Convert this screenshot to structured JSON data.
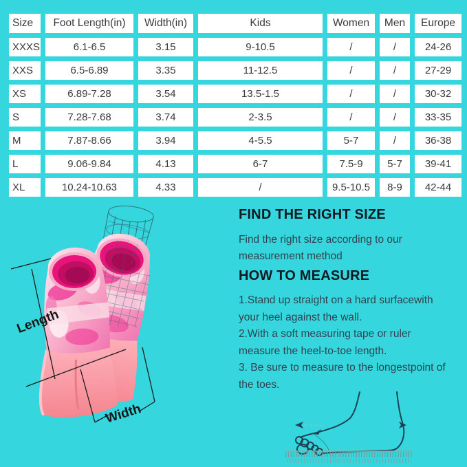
{
  "colors": {
    "background": "#35d6dd",
    "cell_bg": "#ffffff",
    "cell_text": "#3a3a3a",
    "heading_text": "#101a23",
    "body_text": "#31434c",
    "fin_deep_pink": "#e8147a",
    "fin_salmon": "#f58690",
    "annotation_line": "#1b1b1b",
    "foot_outline": "#1d4254"
  },
  "size_table": {
    "columns": [
      "Size",
      "Foot Length(in)",
      "Width(in)",
      "Kids",
      "Women",
      "Men",
      "Europe"
    ],
    "rows": [
      [
        "XXXS",
        "6.1-6.5",
        "3.15",
        "9-10.5",
        "/",
        "/",
        "24-26"
      ],
      [
        "XXS",
        "6.5-6.89",
        "3.35",
        "11-12.5",
        "/",
        "/",
        "27-29"
      ],
      [
        "XS",
        "6.89-7.28",
        "3.54",
        "13.5-1.5",
        "/",
        "/",
        "30-32"
      ],
      [
        "S",
        "7.28-7.68",
        "3.74",
        "2-3.5",
        "/",
        "/",
        "33-35"
      ],
      [
        "M",
        "7.87-8.66",
        "3.94",
        "4-5.5",
        "5-7",
        "/",
        "36-38"
      ],
      [
        "L",
        "9.06-9.84",
        "4.13",
        "6-7",
        "7.5-9",
        "5-7",
        "39-41"
      ],
      [
        "XL",
        "10.24-10.63",
        "4.33",
        "/",
        "9.5-10.5",
        "8-9",
        "42-44"
      ]
    ]
  },
  "fins_figure": {
    "length_label": "Length",
    "width_label": "Width"
  },
  "info": {
    "heading1": "FIND THE RIGHT SIZE",
    "para1_lines": [
      "Find the right size according to our",
      "measurement method"
    ],
    "heading2": "HOW TO MEASURE",
    "steps_lines": [
      "1.Stand up straight on a hard surfacewith",
      "your heel against the wall.",
      "2.With a soft measuring tape or ruler",
      "measure the heel-to-toe length.",
      "3. Be sure to measure to the longestpoint of",
      "the toes."
    ]
  }
}
